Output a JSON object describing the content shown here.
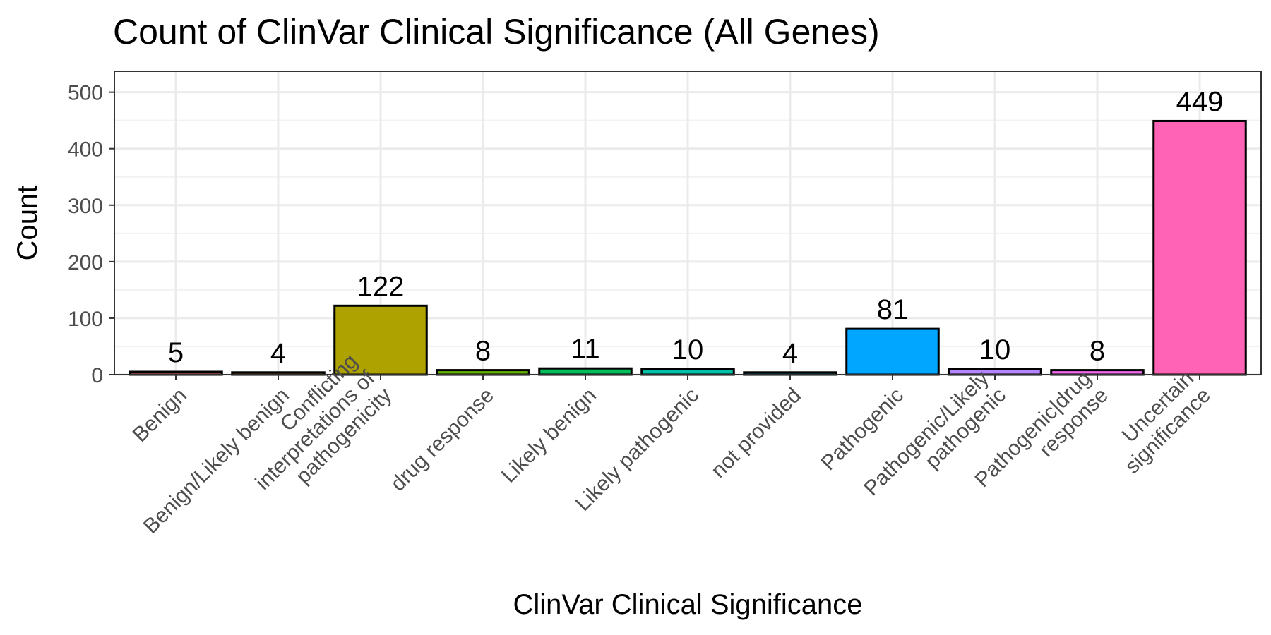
{
  "chart_data": {
    "type": "bar",
    "title": "Count of ClinVar Clinical Significance (All Genes)",
    "xlabel": "ClinVar Clinical Significance",
    "ylabel": "Count",
    "ylim": [
      0,
      537
    ],
    "yticks": [
      0,
      100,
      200,
      300,
      400,
      500
    ],
    "grid": true,
    "legend": "none",
    "categories": [
      "Benign",
      "Benign/Likely benign",
      "Conflicting interpretations of pathogenicity",
      "drug response",
      "Likely benign",
      "Likely pathogenic",
      "not provided",
      "Pathogenic",
      "Pathogenic/Likely pathogenic",
      "Pathogenic|drug response",
      "Uncertain significance"
    ],
    "category_label_lines": [
      [
        "Benign"
      ],
      [
        "Benign/Likely benign"
      ],
      [
        "Conflicting",
        "interpretations of",
        "pathogenicity"
      ],
      [
        "drug response"
      ],
      [
        "Likely benign"
      ],
      [
        "Likely pathogenic"
      ],
      [
        "not provided"
      ],
      [
        "Pathogenic"
      ],
      [
        "Pathogenic/Likely",
        "pathogenic"
      ],
      [
        "Pathogenic|drug",
        "response"
      ],
      [
        "Uncertain",
        "significance"
      ]
    ],
    "values": [
      5,
      4,
      122,
      8,
      11,
      10,
      4,
      81,
      10,
      8,
      449
    ],
    "colors": [
      "#F8766D",
      "#DB8E00",
      "#AEA200",
      "#64B200",
      "#00BD5C",
      "#00C1A7",
      "#00BADE",
      "#00A6FF",
      "#B385FF",
      "#EF67EB",
      "#FF63B6"
    ]
  }
}
